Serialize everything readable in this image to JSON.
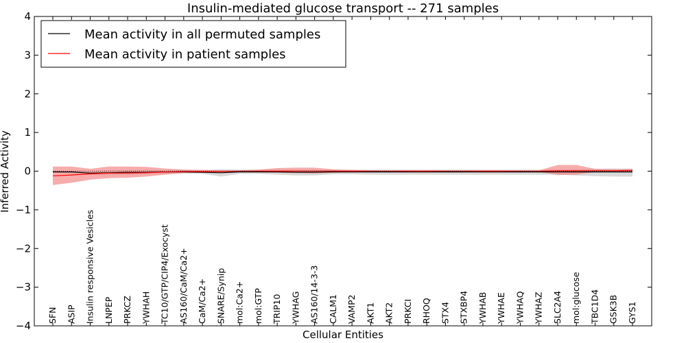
{
  "chart_data": {
    "type": "line",
    "title": "Insulin-mediated glucose transport -- 271 samples",
    "xlabel": "Cellular Entities",
    "ylabel": "Inferred Activity",
    "ylim": [
      -4,
      4
    ],
    "yticks": [
      -4,
      -3,
      -2,
      -1,
      0,
      1,
      2,
      3,
      4
    ],
    "ytick_labels": [
      "−4",
      "−3",
      "−2",
      "−1",
      "0",
      "1",
      "2",
      "3",
      "4"
    ],
    "grid": false,
    "legend_position": "top-left",
    "categories": [
      "SFN",
      "ASIP",
      "Insulin responsive Vesicles",
      "LNPEP",
      "PRKCZ",
      "YWHAH",
      "TC10/GTP/CIP4/Exocyst",
      "AS160/CaM/Ca2+",
      "CaM/Ca2+",
      "SNARE/Synip",
      "mol:Ca2+",
      "mol:GTP",
      "TRIP10",
      "YWHAG",
      "AS160/14-3-3",
      "CALM1",
      "VAMP2",
      "AKT1",
      "AKT2",
      "PRKCI",
      "RHOQ",
      "STX4",
      "STXBP4",
      "YWHAB",
      "YWHAE",
      "YWHAQ",
      "YWHAZ",
      "SLC2A4",
      "mol:glucose",
      "TBC1D4",
      "GSK3B",
      "GYS1"
    ],
    "series": [
      {
        "name": "Mean activity in all permuted samples",
        "color": "#000000",
        "band_color": "#aaaaaa",
        "values": [
          -0.02,
          -0.02,
          -0.05,
          -0.04,
          -0.03,
          -0.03,
          -0.02,
          -0.02,
          -0.03,
          -0.04,
          -0.02,
          -0.02,
          -0.02,
          -0.03,
          -0.03,
          -0.02,
          -0.02,
          -0.02,
          -0.02,
          -0.02,
          -0.02,
          -0.02,
          -0.02,
          -0.02,
          -0.02,
          -0.02,
          -0.02,
          -0.02,
          -0.02,
          -0.02,
          -0.02,
          -0.02
        ],
        "lower": [
          -0.03,
          -0.06,
          -0.1,
          -0.1,
          -0.09,
          -0.08,
          -0.07,
          -0.06,
          -0.07,
          -0.14,
          -0.07,
          -0.07,
          -0.09,
          -0.11,
          -0.11,
          -0.08,
          -0.08,
          -0.09,
          -0.09,
          -0.09,
          -0.09,
          -0.09,
          -0.09,
          -0.09,
          -0.09,
          -0.09,
          -0.09,
          -0.09,
          -0.11,
          -0.13,
          -0.14,
          -0.14
        ],
        "upper": [
          0.01,
          0.01,
          -0.01,
          0.02,
          0.03,
          0.03,
          0.03,
          0.04,
          0.03,
          0.05,
          0.04,
          0.04,
          0.05,
          0.04,
          0.04,
          0.04,
          0.04,
          0.04,
          0.04,
          0.04,
          0.04,
          0.04,
          0.04,
          0.04,
          0.04,
          0.04,
          0.04,
          0.04,
          0.05,
          0.06,
          0.07,
          0.07
        ]
      },
      {
        "name": "Mean activity in patient samples",
        "color": "#ff0000",
        "band_color": "#f28080",
        "values": [
          -0.12,
          -0.1,
          -0.07,
          -0.05,
          -0.05,
          -0.04,
          -0.02,
          -0.01,
          -0.01,
          -0.01,
          0.0,
          0.0,
          0.0,
          0.0,
          0.0,
          0.0,
          0.0,
          0.0,
          0.0,
          0.0,
          0.0,
          0.0,
          0.0,
          0.0,
          0.0,
          0.0,
          0.0,
          0.01,
          0.01,
          0.01,
          0.01,
          0.02
        ],
        "lower": [
          -0.36,
          -0.3,
          -0.22,
          -0.18,
          -0.17,
          -0.14,
          -0.09,
          -0.05,
          -0.04,
          -0.03,
          -0.02,
          -0.03,
          -0.04,
          -0.05,
          -0.06,
          -0.04,
          -0.03,
          -0.02,
          -0.02,
          -0.02,
          -0.02,
          -0.02,
          -0.02,
          -0.02,
          -0.02,
          -0.02,
          -0.02,
          -0.1,
          -0.09,
          -0.02,
          -0.02,
          -0.01
        ],
        "upper": [
          0.12,
          0.12,
          0.06,
          0.12,
          0.12,
          0.11,
          0.07,
          0.04,
          0.03,
          0.02,
          0.02,
          0.04,
          0.08,
          0.09,
          0.09,
          0.05,
          0.03,
          0.02,
          0.02,
          0.02,
          0.02,
          0.02,
          0.02,
          0.02,
          0.02,
          0.02,
          0.02,
          0.16,
          0.16,
          0.06,
          0.05,
          0.05
        ]
      }
    ]
  }
}
